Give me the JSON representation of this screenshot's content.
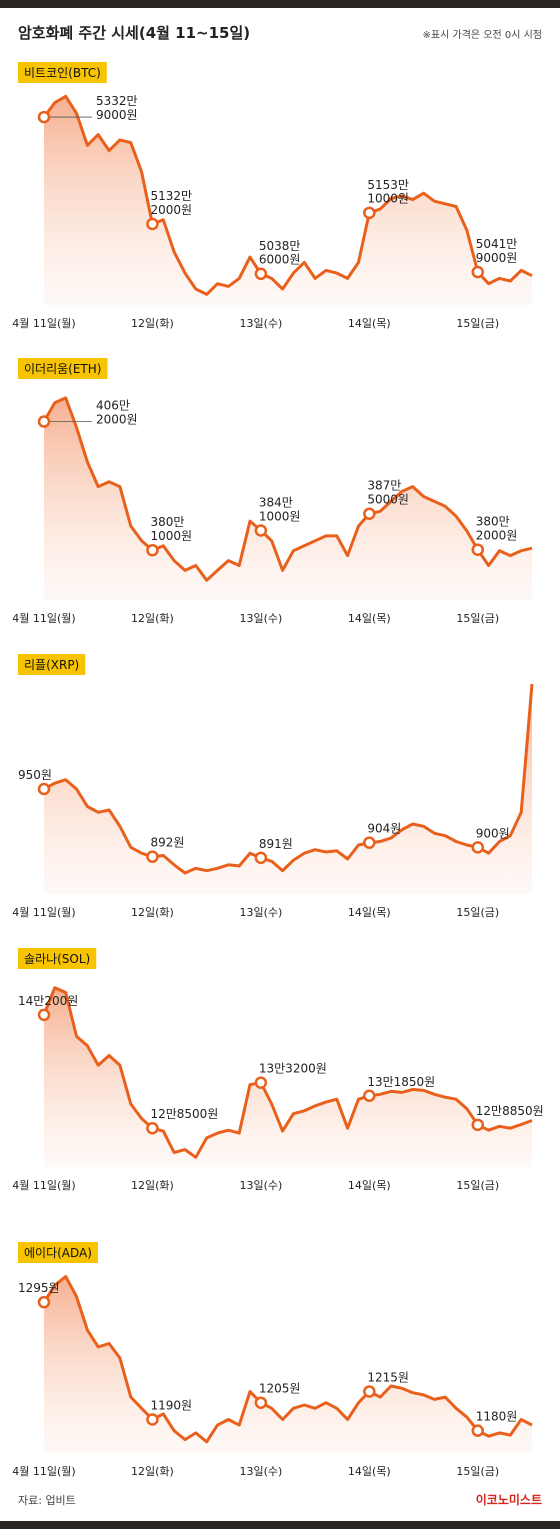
{
  "header": {
    "title": "암호화폐 주간 시세(4월 11~15일)",
    "note": "※표시 가격은 오전 0시 시점"
  },
  "chart_data": [
    {
      "type": "line",
      "title": "비트코인(BTC)",
      "x": [
        0,
        0.1,
        0.2,
        0.3,
        0.4,
        0.5,
        0.6,
        0.7,
        0.8,
        0.9,
        1,
        1.1,
        1.2,
        1.3,
        1.4,
        1.5,
        1.6,
        1.7,
        1.8,
        1.9,
        2,
        2.1,
        2.2,
        2.3,
        2.4,
        2.5,
        2.6,
        2.7,
        2.8,
        2.9,
        3,
        3.1,
        3.2,
        3.3,
        3.4,
        3.5,
        3.6,
        3.7,
        3.8,
        3.9,
        4,
        4.1,
        4.2,
        4.3,
        4.4,
        4.5
      ],
      "xlim": [
        0,
        4.5
      ],
      "xticks": [
        {
          "value": 0,
          "label": "4월 11일(월)"
        },
        {
          "value": 1,
          "label": "12일(화)"
        },
        {
          "value": 2,
          "label": "13일(수)"
        },
        {
          "value": 3,
          "label": "14일(목)"
        },
        {
          "value": 4,
          "label": "15일(금)"
        }
      ],
      "ylim": [
        49800000,
        53800000
      ],
      "series": [
        {
          "color": "#e8601c",
          "values": [
            53329000,
            53600000,
            53720000,
            53400000,
            52800000,
            53000000,
            52700000,
            52900000,
            52850000,
            52300000,
            51322000,
            51400000,
            50800000,
            50400000,
            50100000,
            50000000,
            50200000,
            50150000,
            50300000,
            50700000,
            50386000,
            50300000,
            50100000,
            50400000,
            50600000,
            50300000,
            50450000,
            50400000,
            50300000,
            50600000,
            51531000,
            51600000,
            51800000,
            51850000,
            51780000,
            51900000,
            51750000,
            51700000,
            51650000,
            51200000,
            50419000,
            50200000,
            50300000,
            50250000,
            50450000,
            50350000
          ],
          "value_labels": [
            "5332만\n9000원",
            null,
            null,
            null,
            null,
            null,
            null,
            null,
            null,
            null,
            "5132만\n2000원",
            null,
            null,
            null,
            null,
            null,
            null,
            null,
            null,
            null,
            "5038만\n6000원",
            null,
            null,
            null,
            null,
            null,
            null,
            null,
            null,
            null,
            "5153만\n1000원",
            null,
            null,
            null,
            null,
            null,
            null,
            null,
            null,
            null,
            "5041만\n9000원",
            null,
            null,
            null,
            null,
            null
          ]
        }
      ]
    },
    {
      "type": "line",
      "title": "이더리움(ETH)",
      "x": [
        0,
        0.1,
        0.2,
        0.3,
        0.4,
        0.5,
        0.6,
        0.7,
        0.8,
        0.9,
        1,
        1.1,
        1.2,
        1.3,
        1.4,
        1.5,
        1.6,
        1.7,
        1.8,
        1.9,
        2,
        2.1,
        2.2,
        2.3,
        2.4,
        2.5,
        2.6,
        2.7,
        2.8,
        2.9,
        3,
        3.1,
        3.2,
        3.3,
        3.4,
        3.5,
        3.6,
        3.7,
        3.8,
        3.9,
        4,
        4.1,
        4.2,
        4.3,
        4.4,
        4.5
      ],
      "xlim": [
        0,
        4.5
      ],
      "xticks": [
        {
          "value": 0,
          "label": "4월 11일(월)"
        },
        {
          "value": 1,
          "label": "12일(화)"
        },
        {
          "value": 2,
          "label": "13일(수)"
        },
        {
          "value": 3,
          "label": "14일(목)"
        },
        {
          "value": 4,
          "label": "15일(금)"
        }
      ],
      "ylim": [
        3700000,
        4130000
      ],
      "series": [
        {
          "color": "#e8601c",
          "values": [
            4062000,
            4100000,
            4110000,
            4050000,
            3980000,
            3930000,
            3940000,
            3930000,
            3850000,
            3820000,
            3801000,
            3810000,
            3780000,
            3760000,
            3770000,
            3740000,
            3760000,
            3780000,
            3770000,
            3860000,
            3841000,
            3820000,
            3760000,
            3800000,
            3810000,
            3820000,
            3830000,
            3830000,
            3790000,
            3850000,
            3875000,
            3880000,
            3900000,
            3920000,
            3930000,
            3910000,
            3900000,
            3890000,
            3870000,
            3840000,
            3802000,
            3770000,
            3800000,
            3790000,
            3800000,
            3805000
          ],
          "value_labels": [
            "406만\n2000원",
            null,
            null,
            null,
            null,
            null,
            null,
            null,
            null,
            null,
            "380만\n1000원",
            null,
            null,
            null,
            null,
            null,
            null,
            null,
            null,
            null,
            "384만\n1000원",
            null,
            null,
            null,
            null,
            null,
            null,
            null,
            null,
            null,
            "387만\n5000원",
            null,
            null,
            null,
            null,
            null,
            null,
            null,
            null,
            null,
            "380만\n2000원",
            null,
            null,
            null,
            null,
            null
          ]
        }
      ]
    },
    {
      "type": "line",
      "title": "리플(XRP)",
      "x": [
        0,
        0.1,
        0.2,
        0.3,
        0.4,
        0.5,
        0.6,
        0.7,
        0.8,
        0.9,
        1,
        1.1,
        1.2,
        1.3,
        1.4,
        1.5,
        1.6,
        1.7,
        1.8,
        1.9,
        2,
        2.1,
        2.2,
        2.3,
        2.4,
        2.5,
        2.6,
        2.7,
        2.8,
        2.9,
        3,
        3.1,
        3.2,
        3.3,
        3.4,
        3.5,
        3.6,
        3.7,
        3.8,
        3.9,
        4,
        4.1,
        4.2,
        4.3,
        4.4,
        4.5
      ],
      "xlim": [
        0,
        4.5
      ],
      "xticks": [
        {
          "value": 0,
          "label": "4월 11일(월)"
        },
        {
          "value": 1,
          "label": "12일(화)"
        },
        {
          "value": 2,
          "label": "13일(수)"
        },
        {
          "value": 3,
          "label": "14일(목)"
        },
        {
          "value": 4,
          "label": "15일(금)"
        }
      ],
      "ylim": [
        860,
        1040
      ],
      "series": [
        {
          "color": "#e8601c",
          "values": [
            950,
            955,
            958,
            950,
            935,
            930,
            932,
            918,
            900,
            895,
            892,
            893,
            885,
            878,
            882,
            880,
            882,
            885,
            884,
            895,
            891,
            888,
            880,
            889,
            895,
            898,
            896,
            897,
            890,
            902,
            904,
            905,
            908,
            915,
            920,
            918,
            912,
            910,
            905,
            902,
            900,
            895,
            905,
            910,
            930,
            1040
          ],
          "value_labels": [
            "950원",
            null,
            null,
            null,
            null,
            null,
            null,
            null,
            null,
            null,
            "892원",
            null,
            null,
            null,
            null,
            null,
            null,
            null,
            null,
            null,
            "891원",
            null,
            null,
            null,
            null,
            null,
            null,
            null,
            null,
            null,
            "904원",
            null,
            null,
            null,
            null,
            null,
            null,
            null,
            null,
            null,
            "900원",
            null,
            null,
            null,
            null,
            null
          ]
        }
      ]
    },
    {
      "type": "line",
      "title": "솔라나(SOL)",
      "x": [
        0,
        0.1,
        0.2,
        0.3,
        0.4,
        0.5,
        0.6,
        0.7,
        0.8,
        0.9,
        1,
        1.1,
        1.2,
        1.3,
        1.4,
        1.5,
        1.6,
        1.7,
        1.8,
        1.9,
        2,
        2.1,
        2.2,
        2.3,
        2.4,
        2.5,
        2.6,
        2.7,
        2.8,
        2.9,
        3,
        3.1,
        3.2,
        3.3,
        3.4,
        3.5,
        3.6,
        3.7,
        3.8,
        3.9,
        4,
        4.1,
        4.2,
        4.3,
        4.4,
        4.5
      ],
      "xlim": [
        0,
        4.5
      ],
      "xticks": [
        {
          "value": 0,
          "label": "4월 11일(월)"
        },
        {
          "value": 1,
          "label": "12일(화)"
        },
        {
          "value": 2,
          "label": "13일(수)"
        },
        {
          "value": 3,
          "label": "14일(목)"
        },
        {
          "value": 4,
          "label": "15일(금)"
        }
      ],
      "ylim": [
        124500,
        144000
      ],
      "series": [
        {
          "color": "#e8601c",
          "values": [
            140200,
            143000,
            142500,
            138000,
            137000,
            135000,
            136000,
            135000,
            131000,
            129500,
            128500,
            128200,
            126000,
            126300,
            125500,
            127500,
            128000,
            128300,
            128000,
            133000,
            133200,
            131000,
            128200,
            130000,
            130300,
            130800,
            131200,
            131500,
            128500,
            131500,
            131850,
            132000,
            132300,
            132200,
            132500,
            132400,
            132000,
            131700,
            131500,
            130500,
            128850,
            128300,
            128700,
            128500,
            128900,
            129300
          ],
          "value_labels": [
            "14만200원",
            null,
            null,
            null,
            null,
            null,
            null,
            null,
            null,
            null,
            "12만8500원",
            null,
            null,
            null,
            null,
            null,
            null,
            null,
            null,
            null,
            "13만3200원",
            null,
            null,
            null,
            null,
            null,
            null,
            null,
            null,
            null,
            "13만1850원",
            null,
            null,
            null,
            null,
            null,
            null,
            null,
            null,
            null,
            "12만8850원",
            null,
            null,
            null,
            null,
            null
          ]
        }
      ]
    },
    {
      "type": "line",
      "title": "에이다(ADA)",
      "x": [
        0,
        0.1,
        0.2,
        0.3,
        0.4,
        0.5,
        0.6,
        0.7,
        0.8,
        0.9,
        1,
        1.1,
        1.2,
        1.3,
        1.4,
        1.5,
        1.6,
        1.7,
        1.8,
        1.9,
        2,
        2.1,
        2.2,
        2.3,
        2.4,
        2.5,
        2.6,
        2.7,
        2.8,
        2.9,
        3,
        3.1,
        3.2,
        3.3,
        3.4,
        3.5,
        3.6,
        3.7,
        3.8,
        3.9,
        4,
        4.1,
        4.2,
        4.3,
        4.4,
        4.5
      ],
      "xlim": [
        0,
        4.5
      ],
      "xticks": [
        {
          "value": 0,
          "label": "4월 11일(월)"
        },
        {
          "value": 1,
          "label": "12일(화)"
        },
        {
          "value": 2,
          "label": "13일(수)"
        },
        {
          "value": 3,
          "label": "14일(목)"
        },
        {
          "value": 4,
          "label": "15일(금)"
        }
      ],
      "ylim": [
        1160,
        1322
      ],
      "series": [
        {
          "color": "#e8601c",
          "values": [
            1295,
            1310,
            1318,
            1300,
            1270,
            1255,
            1258,
            1245,
            1210,
            1200,
            1190,
            1195,
            1180,
            1172,
            1178,
            1170,
            1185,
            1190,
            1185,
            1215,
            1205,
            1200,
            1190,
            1200,
            1203,
            1200,
            1205,
            1200,
            1190,
            1205,
            1215,
            1210,
            1220,
            1218,
            1214,
            1212,
            1208,
            1210,
            1200,
            1192,
            1180,
            1175,
            1178,
            1176,
            1190,
            1185
          ],
          "value_labels": [
            "1295원",
            null,
            null,
            null,
            null,
            null,
            null,
            null,
            null,
            null,
            "1190원",
            null,
            null,
            null,
            null,
            null,
            null,
            null,
            null,
            null,
            "1205원",
            null,
            null,
            null,
            null,
            null,
            null,
            null,
            null,
            null,
            "1215원",
            null,
            null,
            null,
            null,
            null,
            null,
            null,
            null,
            null,
            "1180원",
            null,
            null,
            null,
            null,
            null
          ]
        }
      ]
    }
  ],
  "footer": {
    "source": "자료: 업비트",
    "logo": "이코노미스트"
  }
}
